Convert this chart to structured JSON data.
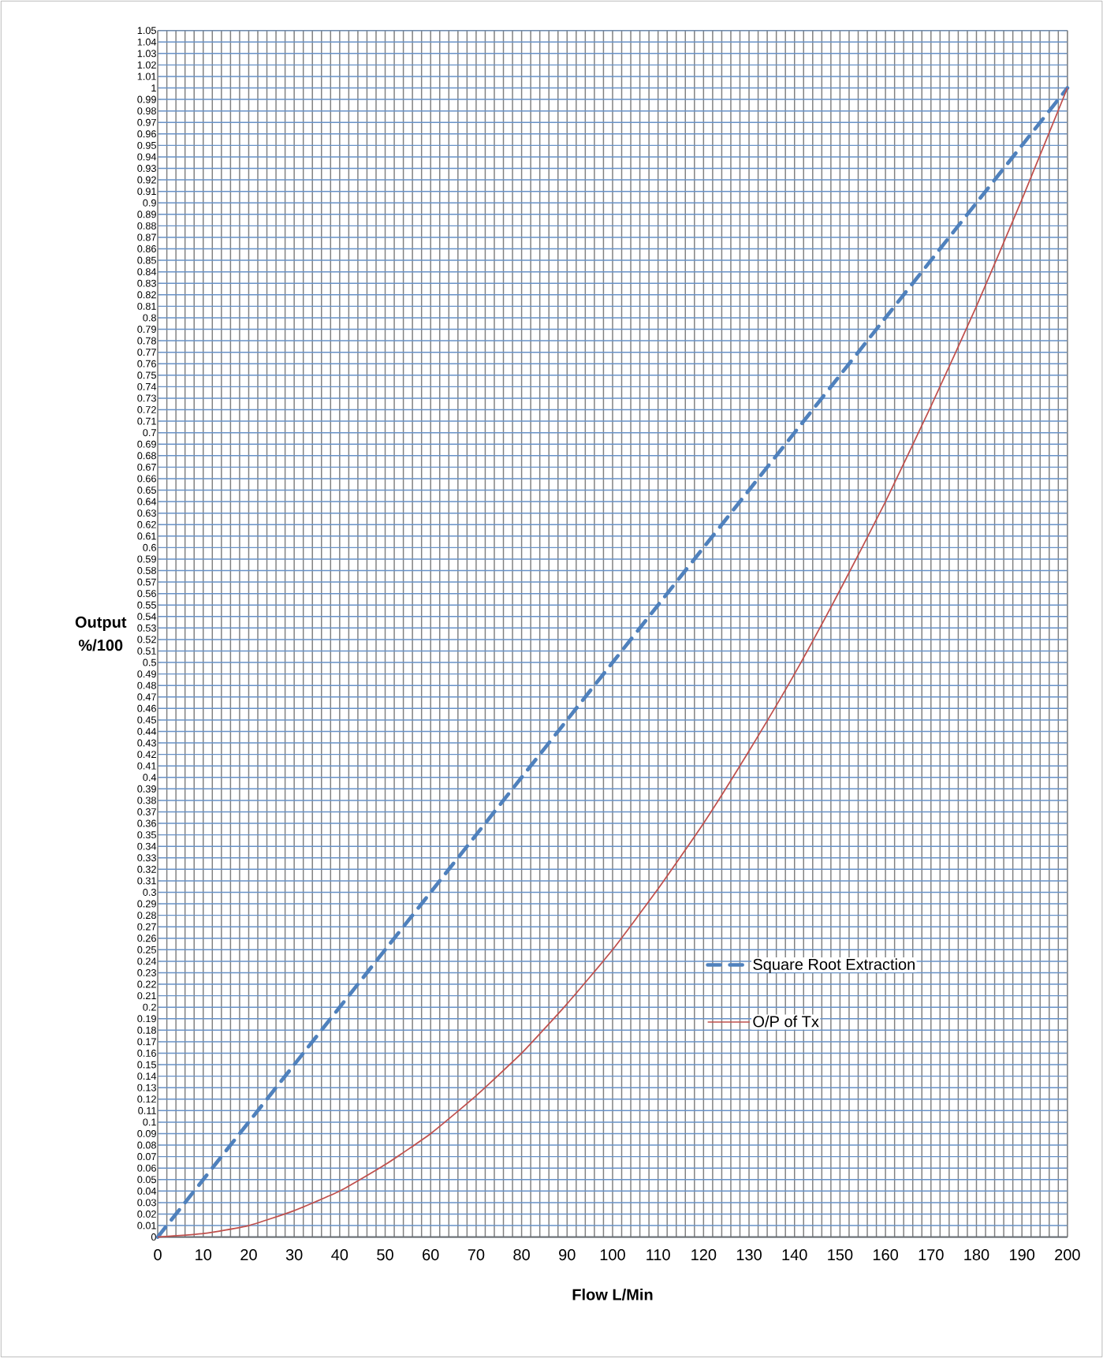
{
  "chart_data": {
    "type": "line",
    "xlabel": "Flow  L/Min",
    "ylabel": "Output %/100",
    "x": [
      0,
      10,
      20,
      30,
      40,
      50,
      60,
      70,
      80,
      90,
      100,
      110,
      120,
      130,
      140,
      150,
      160,
      170,
      180,
      190,
      200
    ],
    "series": [
      {
        "name": "Square Root Extraction",
        "color": "#4f81bd",
        "line_style": "dashed",
        "values": [
          0,
          0.05,
          0.1,
          0.15,
          0.2,
          0.25,
          0.3,
          0.35,
          0.4,
          0.45,
          0.5,
          0.55,
          0.6,
          0.65,
          0.7,
          0.75,
          0.8,
          0.85,
          0.9,
          0.95,
          1
        ]
      },
      {
        "name": "O/P of Tx",
        "color": "#c0504d",
        "line_style": "solid",
        "values": [
          0,
          0.003,
          0.01,
          0.023,
          0.04,
          0.063,
          0.09,
          0.123,
          0.16,
          0.203,
          0.25,
          0.303,
          0.36,
          0.423,
          0.49,
          0.563,
          0.64,
          0.723,
          0.81,
          0.903,
          1
        ]
      }
    ],
    "xlim": [
      0,
      200
    ],
    "xticks": [
      0,
      10,
      20,
      30,
      40,
      50,
      60,
      70,
      80,
      90,
      100,
      110,
      120,
      130,
      140,
      150,
      160,
      170,
      180,
      190,
      200
    ],
    "ylim": [
      0,
      1.05
    ],
    "yticks": [
      0,
      0.01,
      0.02,
      0.03,
      0.04,
      0.05,
      0.06,
      0.07,
      0.08,
      0.09,
      0.1,
      0.11,
      0.12,
      0.13,
      0.14,
      0.15,
      0.16,
      0.17,
      0.18,
      0.19,
      0.2,
      0.21,
      0.22,
      0.23,
      0.24,
      0.25,
      0.26,
      0.27,
      0.28,
      0.29,
      0.3,
      0.31,
      0.32,
      0.33,
      0.34,
      0.35,
      0.36,
      0.37,
      0.38,
      0.39,
      0.4,
      0.41,
      0.42,
      0.43,
      0.44,
      0.45,
      0.46,
      0.47,
      0.48,
      0.49,
      0.5,
      0.51,
      0.52,
      0.53,
      0.54,
      0.55,
      0.56,
      0.57,
      0.58,
      0.59,
      0.6,
      0.61,
      0.62,
      0.63,
      0.64,
      0.65,
      0.66,
      0.67,
      0.68,
      0.69,
      0.7,
      0.71,
      0.72,
      0.73,
      0.74,
      0.75,
      0.76,
      0.77,
      0.78,
      0.79,
      0.8,
      0.81,
      0.82,
      0.83,
      0.84,
      0.85,
      0.86,
      0.87,
      0.88,
      0.89,
      0.9,
      0.91,
      0.92,
      0.93,
      0.94,
      0.95,
      0.96,
      0.97,
      0.98,
      0.99,
      1,
      1.01,
      1.02,
      1.03,
      1.04,
      1.05
    ],
    "grid": true,
    "legend": "bottom right",
    "marker": "none"
  }
}
